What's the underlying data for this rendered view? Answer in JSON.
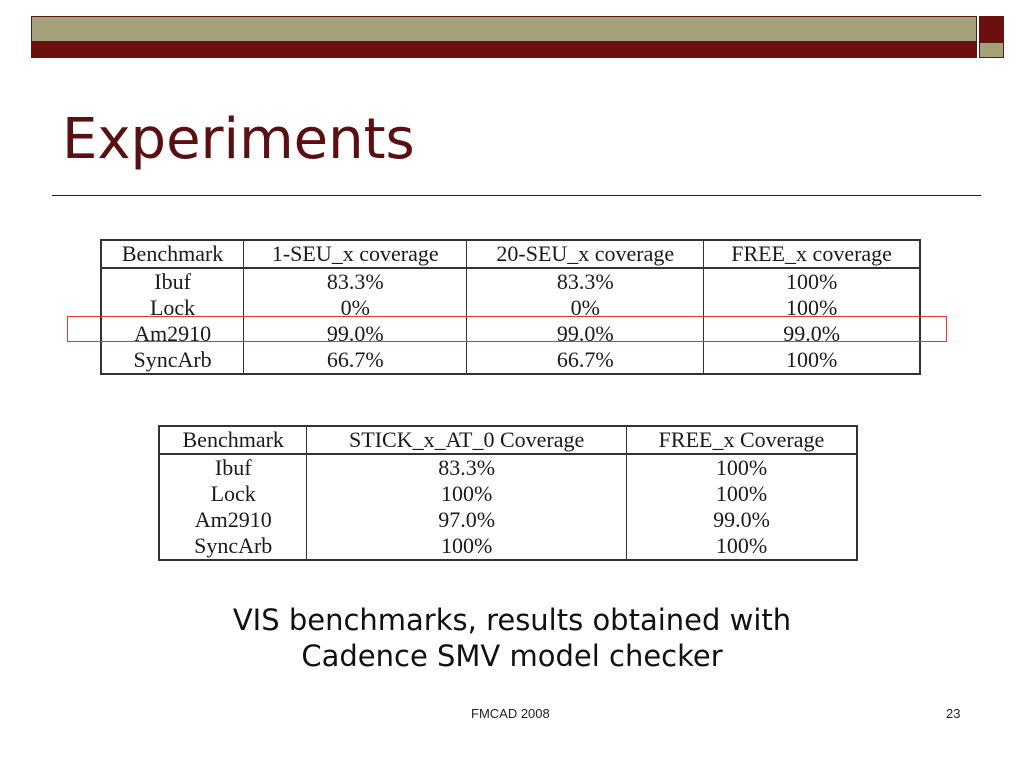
{
  "title": "Experiments",
  "table1": {
    "headers": [
      "Benchmark",
      "1-SEU_x coverage",
      "20-SEU_x coverage",
      "FREE_x coverage"
    ],
    "rows": [
      [
        "Ibuf",
        "83.3%",
        "83.3%",
        "100%"
      ],
      [
        "Lock",
        "0%",
        "0%",
        "100%"
      ],
      [
        "Am2910",
        "99.0%",
        "99.0%",
        "99.0%"
      ],
      [
        "SyncArb",
        "66.7%",
        "66.7%",
        "100%"
      ]
    ],
    "highlighted_row": "Am2910"
  },
  "table2": {
    "headers": [
      "Benchmark",
      "STICK_x_AT_0 Coverage",
      "FREE_x Coverage"
    ],
    "rows": [
      [
        "Ibuf",
        "83.3%",
        "100%"
      ],
      [
        "Lock",
        "100%",
        "100%"
      ],
      [
        "Am2910",
        "97.0%",
        "99.0%"
      ],
      [
        "SyncArb",
        "100%",
        "100%"
      ]
    ]
  },
  "caption": [
    "VIS benchmarks, results obtained with",
    "Cadence SMV model checker"
  ],
  "footer": {
    "event": "FMCAD 2008",
    "page": "23"
  },
  "colors": {
    "banner_olive": "#a3a17a",
    "banner_maroon": "#6b0f0f",
    "title": "#5a1012",
    "highlight": "#e23a2a"
  }
}
